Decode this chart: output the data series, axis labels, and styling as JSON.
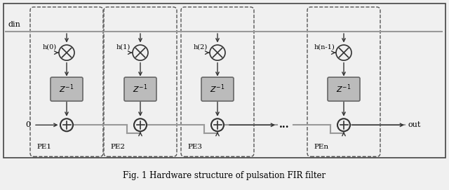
{
  "title": "Fig. 1 Hardware structure of pulsation FIR filter",
  "background_color": "#f0f0f0",
  "line_color": "#888888",
  "dark_line": "#333333",
  "box_color": "#cccccc",
  "text_color": "#000000",
  "pe_labels": [
    "PE1",
    "PE2",
    "PE3",
    "PEn"
  ],
  "h_labels": [
    "h(0)",
    "h(1)",
    "h(2)",
    "h(n-1)"
  ],
  "din_label": "din",
  "out_label": "out",
  "zero_label": "0",
  "dots": "..."
}
